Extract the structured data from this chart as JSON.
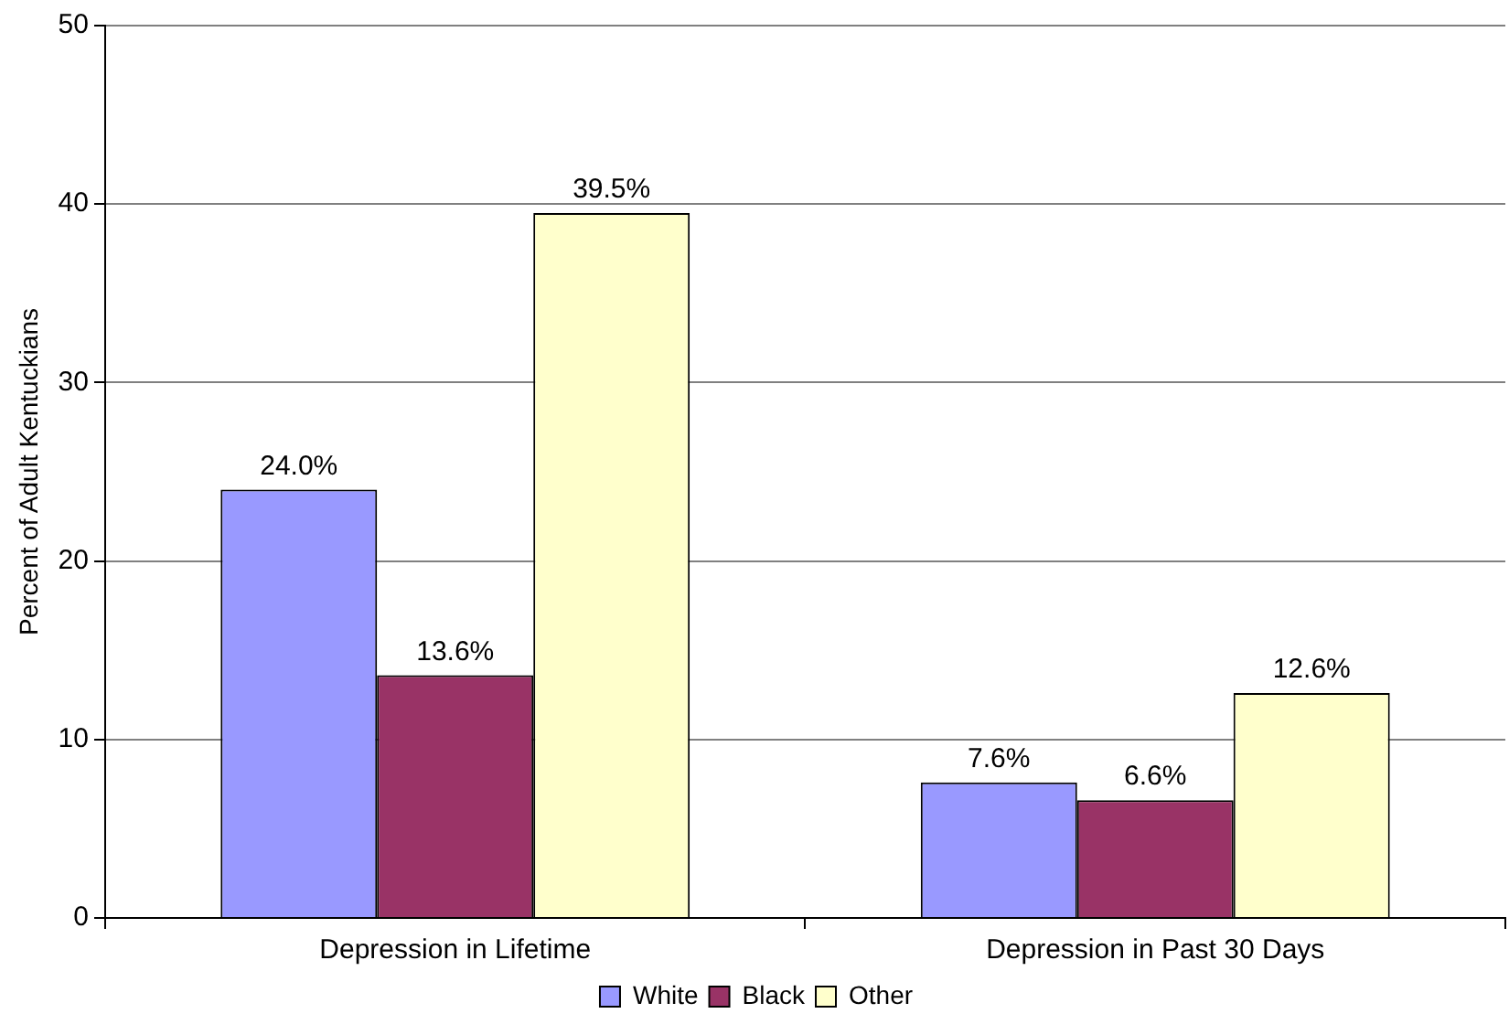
{
  "chart_data": {
    "type": "bar",
    "ylabel": "Percent of Adult Kentuckians",
    "categories": [
      "Depression in Lifetime",
      "Depression in Past 30 Days"
    ],
    "series": [
      {
        "name": "White",
        "color": "#9999ff",
        "values": [
          24.0,
          7.6
        ],
        "value_labels": [
          "24.0%",
          "7.6%"
        ]
      },
      {
        "name": "Black",
        "color": "#993366",
        "values": [
          13.6,
          6.6
        ],
        "value_labels": [
          "13.6%",
          "6.6%"
        ]
      },
      {
        "name": "Other",
        "color": "#ffffcc",
        "values": [
          39.5,
          12.6
        ],
        "value_labels": [
          "39.5%",
          "12.6%"
        ]
      }
    ],
    "ylim": [
      0,
      50
    ],
    "yticks": [
      0,
      10,
      20,
      30,
      40,
      50
    ],
    "grid": "y",
    "legend": "bottom"
  }
}
